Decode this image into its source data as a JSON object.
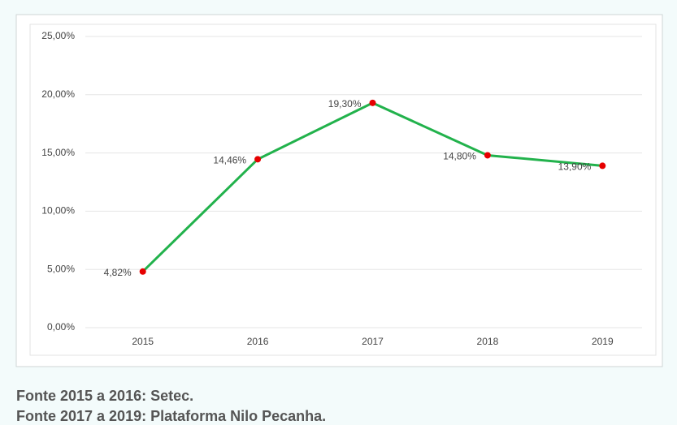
{
  "chart_data": {
    "type": "line",
    "categories": [
      "2015",
      "2016",
      "2017",
      "2018",
      "2019"
    ],
    "series": [
      {
        "color": "#22b24c",
        "marker_color": "#e60000",
        "values": [
          4.82,
          14.46,
          19.3,
          14.8,
          13.9
        ],
        "value_labels": [
          "4,82%",
          "14,46%",
          "19,30%",
          "14,80%",
          "13,90%"
        ]
      }
    ],
    "ylim": [
      0,
      25
    ],
    "yticks": [
      {
        "value": 0,
        "label": "0,00%"
      },
      {
        "value": 5,
        "label": "5,00%"
      },
      {
        "value": 10,
        "label": "10,00%"
      },
      {
        "value": 15,
        "label": "15,00%"
      },
      {
        "value": 20,
        "label": "20,00%"
      },
      {
        "value": 25,
        "label": "25,00%"
      }
    ],
    "grid": true
  },
  "notes": [
    "Fonte 2015 a 2016: Setec.",
    "Fonte 2017 a 2019: Plataforma Nilo Pecanha."
  ]
}
